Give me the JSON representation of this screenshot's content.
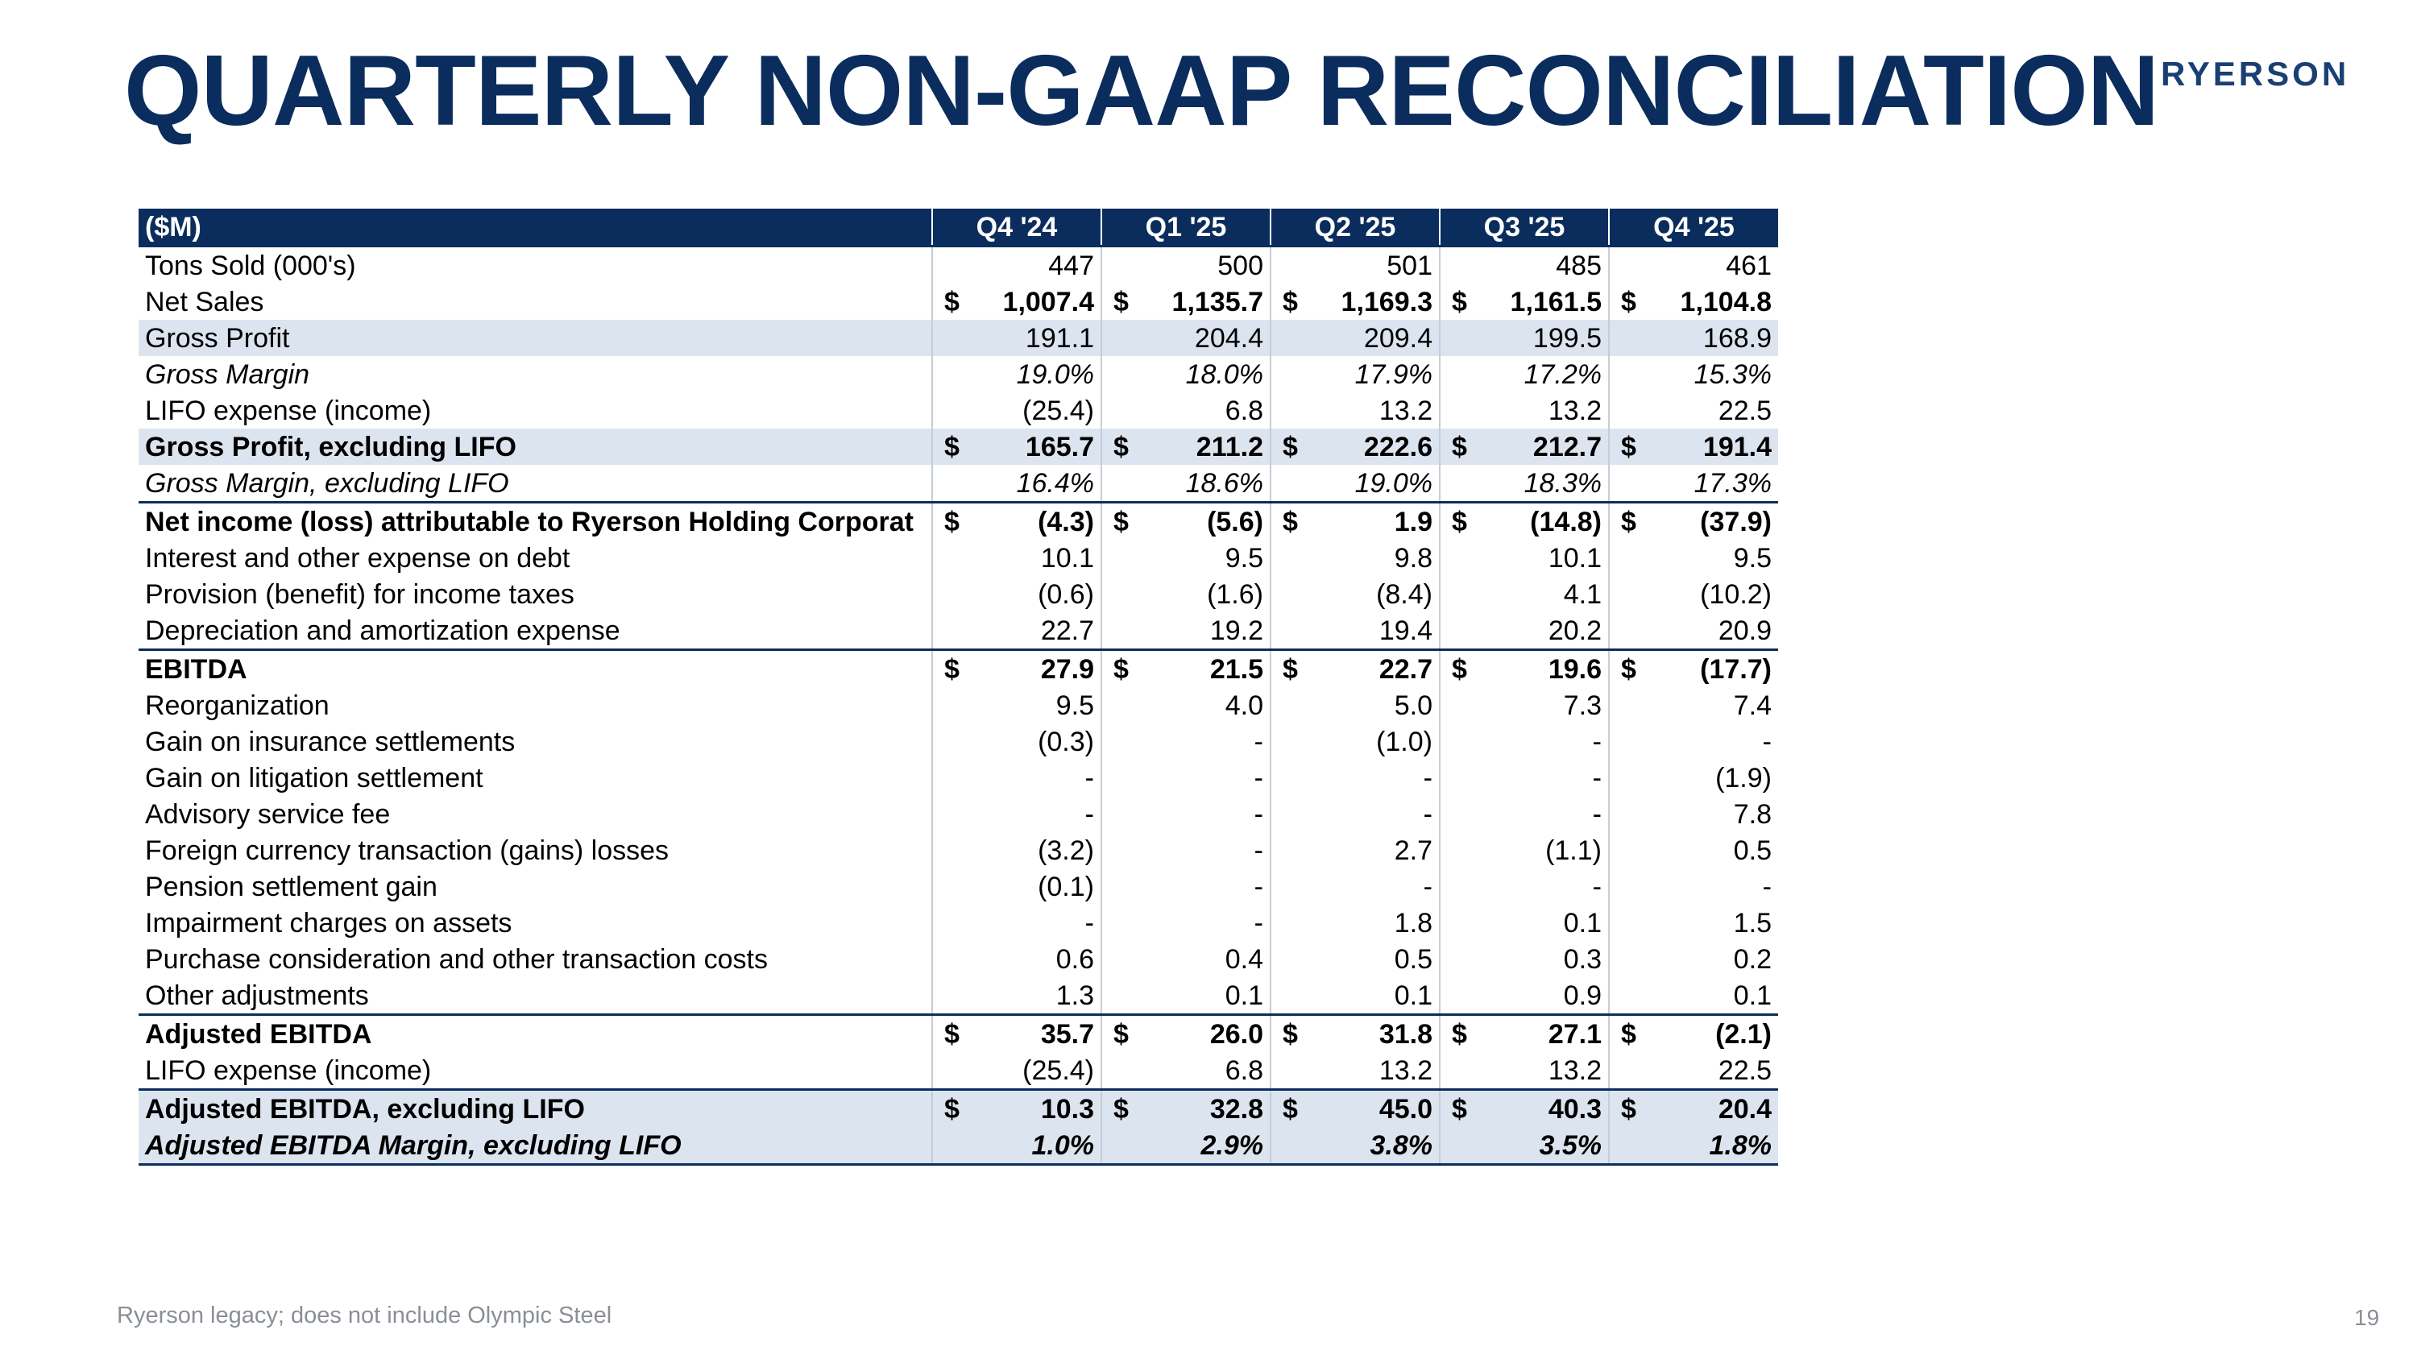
{
  "header": {
    "title": "QUARTERLY NON-GAAP RECONCILIATION",
    "logo_text": "RYERSON"
  },
  "table": {
    "columns": [
      "($M)",
      "Q4 '24",
      "Q1 '25",
      "Q2 '25",
      "Q3 '25",
      "Q4 '25"
    ],
    "rows": [
      {
        "label": "Tons Sold (000's)",
        "currency": "",
        "values": [
          "447",
          "500",
          "501",
          "485",
          "461"
        ],
        "style": ""
      },
      {
        "label": "Net Sales",
        "currency": "$",
        "values": [
          "1,007.4",
          "1,135.7",
          "1,169.3",
          "1,161.5",
          "1,104.8"
        ],
        "style": "bold-values"
      },
      {
        "label": "Gross Profit",
        "currency": "",
        "values": [
          "191.1",
          "204.4",
          "209.4",
          "199.5",
          "168.9"
        ],
        "style": "shade"
      },
      {
        "label": "Gross Margin",
        "currency": "",
        "values": [
          "19.0%",
          "18.0%",
          "17.9%",
          "17.2%",
          "15.3%"
        ],
        "style": "ital"
      },
      {
        "label": "LIFO expense (income)",
        "currency": "",
        "values": [
          "(25.4)",
          "6.8",
          "13.2",
          "13.2",
          "22.5"
        ],
        "style": ""
      },
      {
        "label": "Gross Profit, excluding LIFO",
        "currency": "$",
        "values": [
          "165.7",
          "211.2",
          "222.6",
          "212.7",
          "191.4"
        ],
        "style": "shade bold"
      },
      {
        "label": "Gross Margin, excluding LIFO",
        "currency": "",
        "values": [
          "16.4%",
          "18.6%",
          "19.0%",
          "18.3%",
          "17.3%"
        ],
        "style": "ital bottom-line"
      },
      {
        "label": "Net income (loss) attributable to Ryerson Holding Corporat",
        "currency": "$",
        "values": [
          "(4.3)",
          "(5.6)",
          "1.9",
          "(14.8)",
          "(37.9)"
        ],
        "style": "bold"
      },
      {
        "label": "Interest and other expense on debt",
        "currency": "",
        "values": [
          "10.1",
          "9.5",
          "9.8",
          "10.1",
          "9.5"
        ],
        "style": ""
      },
      {
        "label": "Provision (benefit) for income taxes",
        "currency": "",
        "values": [
          "(0.6)",
          "(1.6)",
          "(8.4)",
          "4.1",
          "(10.2)"
        ],
        "style": ""
      },
      {
        "label": "Depreciation and amortization expense",
        "currency": "",
        "values": [
          "22.7",
          "19.2",
          "19.4",
          "20.2",
          "20.9"
        ],
        "style": "bottom-line"
      },
      {
        "label": "EBITDA",
        "currency": "$",
        "values": [
          "27.9",
          "21.5",
          "22.7",
          "19.6",
          "(17.7)"
        ],
        "style": "bold"
      },
      {
        "label": "Reorganization",
        "currency": "",
        "values": [
          "9.5",
          "4.0",
          "5.0",
          "7.3",
          "7.4"
        ],
        "style": ""
      },
      {
        "label": "Gain on insurance settlements",
        "currency": "",
        "values": [
          "(0.3)",
          "-",
          "(1.0)",
          "-",
          "-"
        ],
        "style": ""
      },
      {
        "label": "Gain on litigation settlement",
        "currency": "",
        "values": [
          "-",
          "-",
          "-",
          "-",
          "(1.9)"
        ],
        "style": ""
      },
      {
        "label": "Advisory service fee",
        "currency": "",
        "values": [
          "-",
          "-",
          "-",
          "-",
          "7.8"
        ],
        "style": ""
      },
      {
        "label": "Foreign currency transaction (gains) losses",
        "currency": "",
        "values": [
          "(3.2)",
          "-",
          "2.7",
          "(1.1)",
          "0.5"
        ],
        "style": ""
      },
      {
        "label": "Pension settlement gain",
        "currency": "",
        "values": [
          "(0.1)",
          "-",
          "-",
          "-",
          "-"
        ],
        "style": ""
      },
      {
        "label": "Impairment charges on assets",
        "currency": "",
        "values": [
          "-",
          "-",
          "1.8",
          "0.1",
          "1.5"
        ],
        "style": ""
      },
      {
        "label": "Purchase consideration and other transaction costs",
        "currency": "",
        "values": [
          "0.6",
          "0.4",
          "0.5",
          "0.3",
          "0.2"
        ],
        "style": ""
      },
      {
        "label": "Other adjustments",
        "currency": "",
        "values": [
          "1.3",
          "0.1",
          "0.1",
          "0.9",
          "0.1"
        ],
        "style": "bottom-line"
      },
      {
        "label": "Adjusted EBITDA",
        "currency": "$",
        "values": [
          "35.7",
          "26.0",
          "31.8",
          "27.1",
          "(2.1)"
        ],
        "style": "bold"
      },
      {
        "label": "LIFO expense (income)",
        "currency": "",
        "values": [
          "(25.4)",
          "6.8",
          "13.2",
          "13.2",
          "22.5"
        ],
        "style": "bottom-line"
      },
      {
        "label": "Adjusted EBITDA, excluding LIFO",
        "currency": "$",
        "values": [
          "10.3",
          "32.8",
          "45.0",
          "40.3",
          "20.4"
        ],
        "style": "shade bold"
      },
      {
        "label": "Adjusted EBITDA Margin, excluding LIFO",
        "currency": "",
        "values": [
          "1.0%",
          "2.9%",
          "3.8%",
          "3.5%",
          "1.8%"
        ],
        "style": "shade bold ital bottom-line"
      }
    ]
  },
  "footer": {
    "note": "Ryerson legacy; does not include Olympic Steel",
    "page_number": "19"
  },
  "colors": {
    "navy": "#0b2d5e",
    "row_shade": "#dce4ef",
    "footer_gray": "#8a8f96"
  }
}
